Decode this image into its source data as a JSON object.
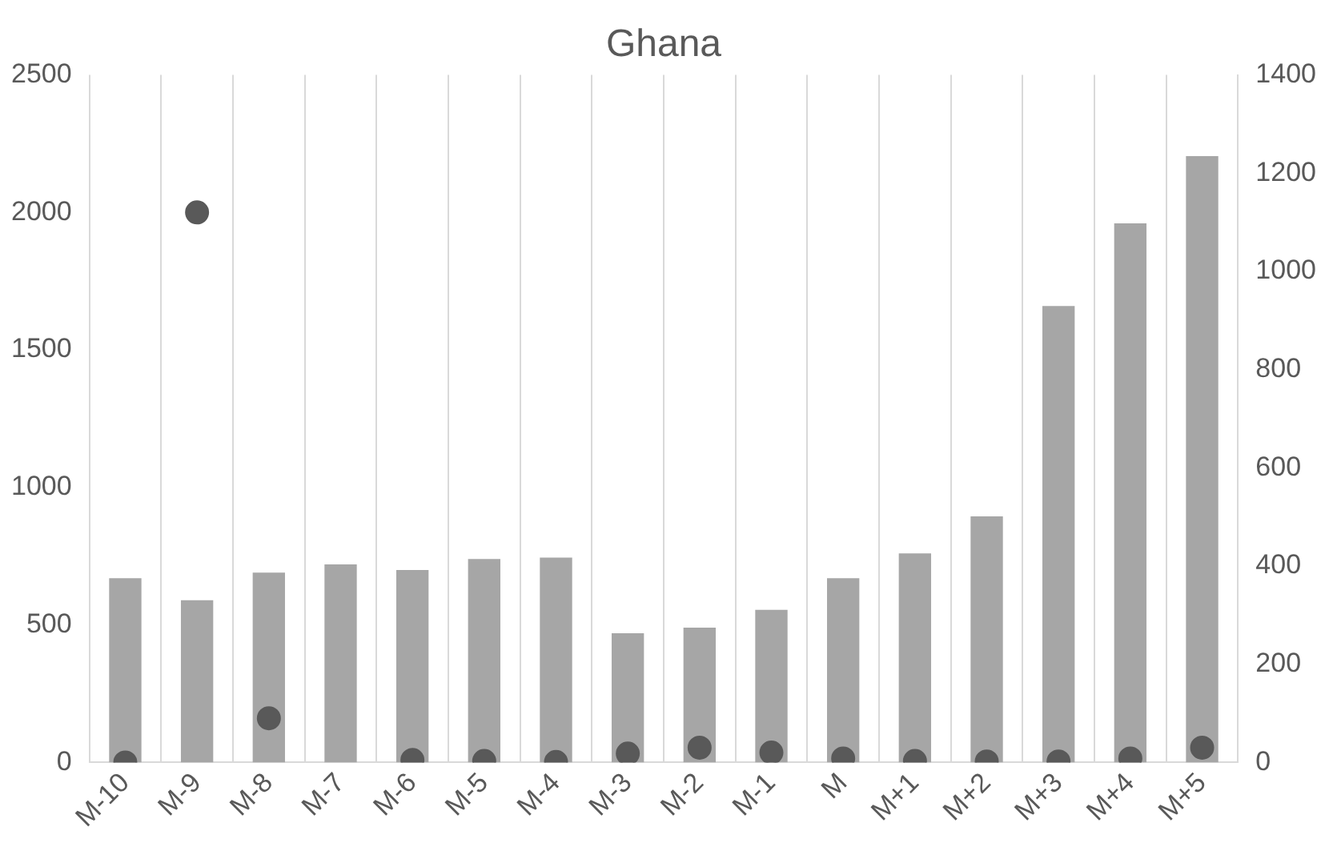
{
  "chart_data": {
    "type": "bar",
    "title": "Ghana",
    "categories": [
      "M-10",
      "M-9",
      "M-8",
      "M-7",
      "M-6",
      "M-5",
      "M-4",
      "M-3",
      "M-2",
      "M-1",
      "M",
      "M+1",
      "M+2",
      "M+3",
      "M+4",
      "M+5"
    ],
    "series": [
      {
        "color": "#a6a6a6",
        "values": [
          670,
          590,
          690,
          720,
          700,
          740,
          745,
          470,
          490,
          555,
          670,
          760,
          895,
          1660,
          1960,
          2205
        ]
      },
      {
        "type": "scatter",
        "axis": "y2",
        "color": "#595959",
        "values": [
          0,
          1120,
          90,
          null,
          5,
          3,
          1,
          18,
          30,
          20,
          8,
          3,
          2,
          2,
          8,
          30
        ]
      }
    ],
    "ylim": [
      0,
      2500
    ],
    "yticks": [
      0,
      500,
      1000,
      1500,
      2000,
      2500
    ],
    "y2lim": [
      0,
      1400
    ],
    "y2ticks": [
      0,
      200,
      400,
      600,
      800,
      1000,
      1200,
      1400
    ],
    "grid": "x",
    "legend": false,
    "marker": "circle"
  }
}
